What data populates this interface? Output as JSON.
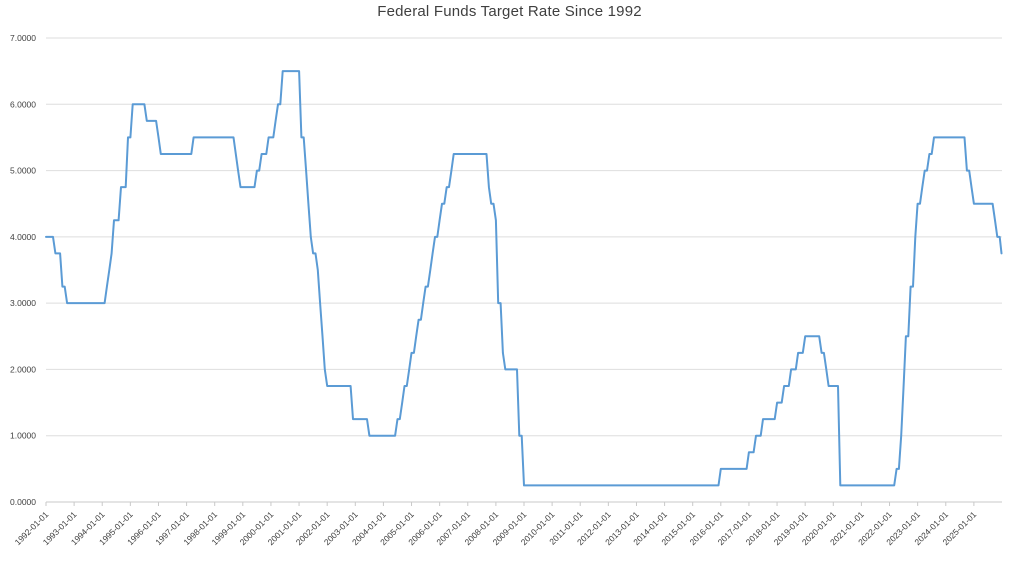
{
  "title": "Federal Funds Target Rate Since 1992",
  "colors": {
    "line": "#5b9bd5",
    "grid": "#dedede",
    "axis": "#c9c9c9",
    "tick": "#c9c9c9",
    "text": "#404040",
    "background": "#ffffff"
  },
  "chart_data": {
    "type": "line",
    "title": "Federal Funds Target Rate Since 1992",
    "xlabel": "",
    "ylabel": "",
    "grid": true,
    "legend_position": "none",
    "ylim": [
      0,
      7
    ],
    "y_tick_labels": [
      "0.0000",
      "1.0000",
      "2.0000",
      "3.0000",
      "4.0000",
      "5.0000",
      "6.0000",
      "7.0000"
    ],
    "x_domain_years": [
      1992,
      2026
    ],
    "x_tick_labels": [
      "1992-01-01",
      "1993-01-01",
      "1994-01-01",
      "1995-01-01",
      "1996-01-01",
      "1997-01-01",
      "1998-01-01",
      "1999-01-01",
      "2000-01-01",
      "2001-01-01",
      "2002-01-01",
      "2003-01-01",
      "2004-01-01",
      "2005-01-01",
      "2006-01-01",
      "2007-01-01",
      "2008-01-01",
      "2009-01-01",
      "2010-01-01",
      "2011-01-01",
      "2012-01-01",
      "2013-01-01",
      "2014-01-01",
      "2015-01-01",
      "2016-01-01",
      "2017-01-01",
      "2018-01-01",
      "2019-01-01",
      "2020-01-01",
      "2021-01-01",
      "2022-01-01",
      "2023-01-01",
      "2024-01-01",
      "2025-01-01"
    ],
    "series": [
      {
        "name": "Federal Funds Target Rate",
        "color": "#5b9bd5",
        "sampling": "monthly-step",
        "rate_changes": [
          [
            "1992-01-01",
            4.0
          ],
          [
            "1992-04-09",
            3.75
          ],
          [
            "1992-07-02",
            3.25
          ],
          [
            "1992-09-04",
            3.0
          ],
          [
            "1994-02-04",
            3.25
          ],
          [
            "1994-03-22",
            3.5
          ],
          [
            "1994-04-18",
            3.75
          ],
          [
            "1994-05-17",
            4.25
          ],
          [
            "1994-08-16",
            4.75
          ],
          [
            "1994-11-15",
            5.5
          ],
          [
            "1995-02-01",
            6.0
          ],
          [
            "1995-07-06",
            5.75
          ],
          [
            "1995-12-19",
            5.5
          ],
          [
            "1996-01-31",
            5.25
          ],
          [
            "1997-03-25",
            5.5
          ],
          [
            "1998-09-29",
            5.25
          ],
          [
            "1998-10-15",
            5.0
          ],
          [
            "1998-11-17",
            4.75
          ],
          [
            "1999-06-30",
            5.0
          ],
          [
            "1999-08-24",
            5.25
          ],
          [
            "1999-11-16",
            5.5
          ],
          [
            "2000-02-02",
            5.75
          ],
          [
            "2000-03-21",
            6.0
          ],
          [
            "2000-05-16",
            6.5
          ],
          [
            "2001-01-03",
            6.0
          ],
          [
            "2001-01-31",
            5.5
          ],
          [
            "2001-03-20",
            5.0
          ],
          [
            "2001-04-18",
            4.5
          ],
          [
            "2001-05-15",
            4.0
          ],
          [
            "2001-06-27",
            3.75
          ],
          [
            "2001-08-21",
            3.5
          ],
          [
            "2001-09-17",
            3.0
          ],
          [
            "2001-10-02",
            2.5
          ],
          [
            "2001-11-06",
            2.0
          ],
          [
            "2001-12-11",
            1.75
          ],
          [
            "2002-11-06",
            1.25
          ],
          [
            "2003-06-25",
            1.0
          ],
          [
            "2004-06-30",
            1.25
          ],
          [
            "2004-08-10",
            1.5
          ],
          [
            "2004-09-21",
            1.75
          ],
          [
            "2004-11-10",
            2.0
          ],
          [
            "2004-12-14",
            2.25
          ],
          [
            "2005-02-02",
            2.5
          ],
          [
            "2005-03-22",
            2.75
          ],
          [
            "2005-05-03",
            3.0
          ],
          [
            "2005-06-30",
            3.25
          ],
          [
            "2005-08-09",
            3.5
          ],
          [
            "2005-09-20",
            3.75
          ],
          [
            "2005-11-01",
            4.0
          ],
          [
            "2005-12-13",
            4.25
          ],
          [
            "2006-01-31",
            4.5
          ],
          [
            "2006-03-28",
            4.75
          ],
          [
            "2006-05-10",
            5.0
          ],
          [
            "2006-06-29",
            5.25
          ],
          [
            "2007-09-18",
            4.75
          ],
          [
            "2007-10-31",
            4.5
          ],
          [
            "2007-12-11",
            4.25
          ],
          [
            "2008-01-22",
            3.5
          ],
          [
            "2008-01-30",
            3.0
          ],
          [
            "2008-03-18",
            2.25
          ],
          [
            "2008-04-30",
            2.0
          ],
          [
            "2008-10-08",
            1.5
          ],
          [
            "2008-10-29",
            1.0
          ],
          [
            "2008-12-16",
            0.25
          ],
          [
            "2015-12-17",
            0.5
          ],
          [
            "2016-12-15",
            0.75
          ],
          [
            "2017-03-16",
            1.0
          ],
          [
            "2017-06-15",
            1.25
          ],
          [
            "2017-12-14",
            1.5
          ],
          [
            "2018-03-22",
            1.75
          ],
          [
            "2018-06-14",
            2.0
          ],
          [
            "2018-09-27",
            2.25
          ],
          [
            "2018-12-20",
            2.5
          ],
          [
            "2019-08-01",
            2.25
          ],
          [
            "2019-09-19",
            2.0
          ],
          [
            "2019-10-31",
            1.75
          ],
          [
            "2020-03-03",
            1.25
          ],
          [
            "2020-03-16",
            0.25
          ],
          [
            "2022-03-17",
            0.5
          ],
          [
            "2022-05-05",
            1.0
          ],
          [
            "2022-06-16",
            1.75
          ],
          [
            "2022-07-28",
            2.5
          ],
          [
            "2022-09-22",
            3.25
          ],
          [
            "2022-11-03",
            4.0
          ],
          [
            "2022-12-15",
            4.5
          ],
          [
            "2023-02-02",
            4.75
          ],
          [
            "2023-03-23",
            5.0
          ],
          [
            "2023-05-04",
            5.25
          ],
          [
            "2023-07-27",
            5.5
          ],
          [
            "2024-09-19",
            5.0
          ],
          [
            "2024-11-08",
            4.75
          ],
          [
            "2024-12-19",
            4.5
          ],
          [
            "2025-09-18",
            4.25
          ],
          [
            "2025-10-30",
            4.0
          ],
          [
            "2025-12-11",
            3.75
          ]
        ]
      }
    ]
  }
}
